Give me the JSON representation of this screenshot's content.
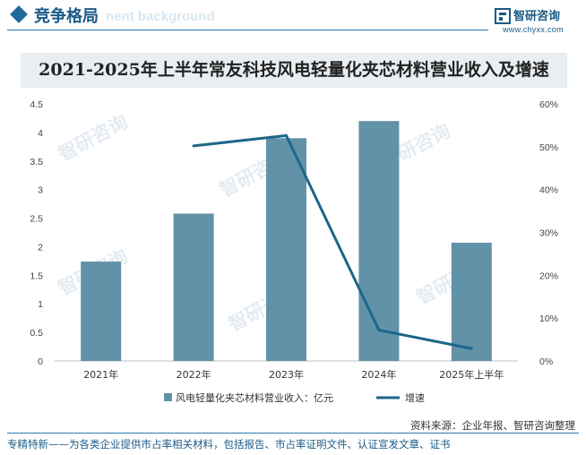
{
  "header": {
    "title": "竞争格局",
    "watermark": "nent background"
  },
  "logo": {
    "name": "智研咨询",
    "url": "www.chyxx.com"
  },
  "chart_title": "2021-2025年上半年常友科技风电轻量化夹芯材料营业收入及增速",
  "watermark_text": "智研咨询",
  "chart_data": {
    "type": "bar",
    "title": "2021-2025年上半年常友科技风电轻量化夹芯材料营业收入及增速",
    "categories": [
      "2021年",
      "2022年",
      "2023年",
      "2024年",
      "2025年上半年"
    ],
    "series": [
      {
        "name": "风电轻量化夹芯材料营业收入：亿元",
        "type": "bar",
        "axis": "left",
        "color": "#6192a8",
        "values": [
          1.74,
          2.58,
          3.9,
          4.2,
          2.07
        ]
      },
      {
        "name": "增速",
        "type": "line",
        "axis": "right",
        "color": "#1d6688",
        "values": [
          null,
          50.2,
          52.6,
          7.2,
          2.9
        ]
      }
    ],
    "y_left": {
      "min": 0,
      "max": 4.5,
      "ticks": [
        "0",
        "0.5",
        "1",
        "1.5",
        "2",
        "2.5",
        "3",
        "3.5",
        "4",
        "4.5"
      ]
    },
    "y_right": {
      "min": 0,
      "max": 60,
      "ticks": [
        "0%",
        "10%",
        "20%",
        "30%",
        "40%",
        "50%",
        "60%"
      ]
    },
    "grid": false,
    "legend_position": "bottom"
  },
  "source": "资料来源：企业年报、智研咨询整理",
  "footer": "专精特新——为各类企业提供市占率相关材料，包括报告、市占率证明文件、认证宣发文章、证书"
}
